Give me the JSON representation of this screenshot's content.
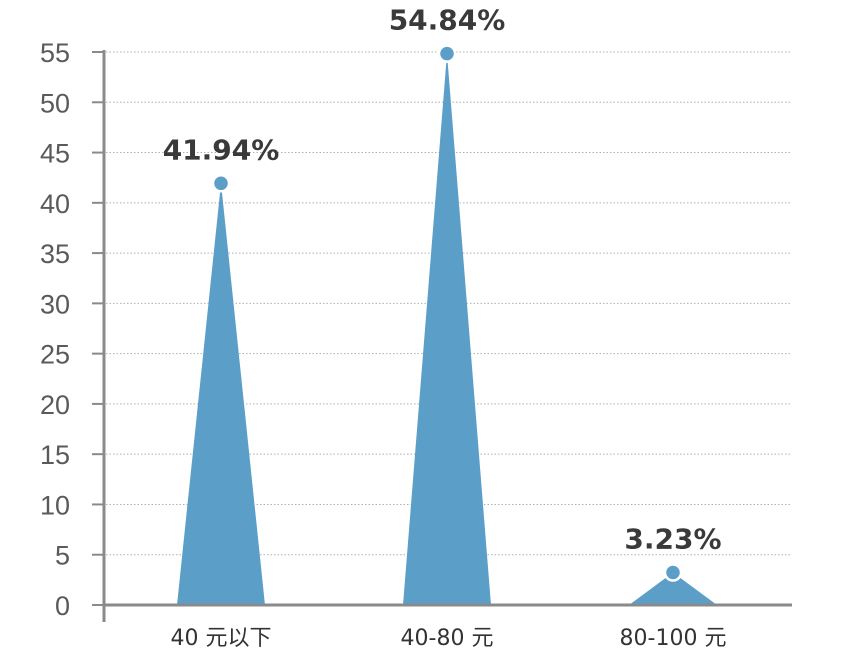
{
  "chart_data": {
    "type": "area",
    "title": "",
    "xlabel": "",
    "ylabel": "",
    "categories": [
      "40 元以下",
      "40-80 元",
      "80-100 元"
    ],
    "values": [
      41.94,
      54.84,
      3.23
    ],
    "data_labels": [
      "41.94%",
      "54.84%",
      "3.23%"
    ],
    "ylim": [
      0,
      55
    ],
    "yticks": [
      "0",
      "5",
      "10",
      "15",
      "20",
      "25",
      "30",
      "35",
      "40",
      "45",
      "50",
      "55"
    ],
    "grid": true,
    "legend": "none",
    "colors": {
      "series": "#5b9fc9",
      "axis": "#8a8a8a",
      "grid": "#b0b0b0",
      "label": "#3a3a3a"
    }
  }
}
